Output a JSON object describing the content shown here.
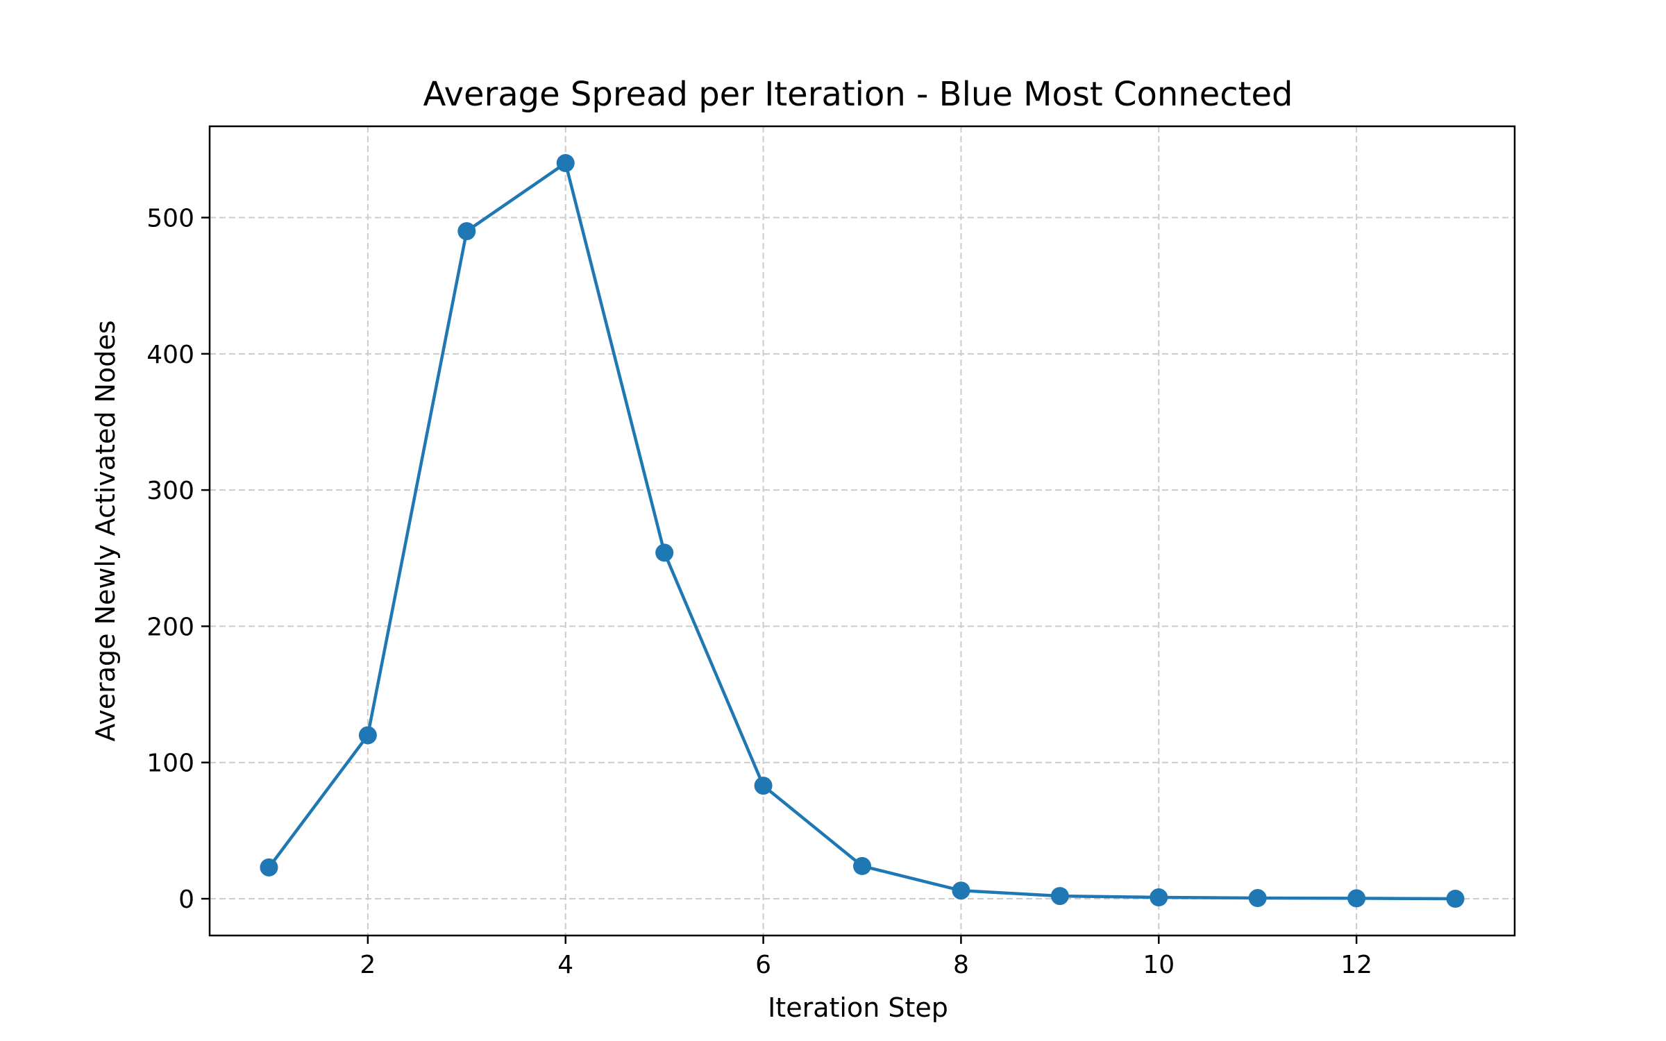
{
  "chart_data": {
    "type": "line",
    "title": "Average Spread per Iteration - Blue Most Connected",
    "xlabel": "Iteration Step",
    "ylabel": "Average Newly Activated Nodes",
    "x": [
      1,
      2,
      3,
      4,
      5,
      6,
      7,
      8,
      9,
      10,
      11,
      12,
      13
    ],
    "series": [
      {
        "values": [
          23,
          120,
          490,
          540,
          254,
          83,
          24,
          6,
          2,
          1,
          0.5,
          0.3,
          0
        ],
        "color": "#1f77b4",
        "marker": "circle"
      }
    ],
    "xticks": [
      "2",
      "4",
      "6",
      "8",
      "10",
      "12"
    ],
    "xtick_values": [
      2,
      4,
      6,
      8,
      10,
      12
    ],
    "yticks": [
      "0",
      "100",
      "200",
      "300",
      "400",
      "500"
    ],
    "ytick_values": [
      0,
      100,
      200,
      300,
      400,
      500
    ],
    "xlim": [
      0.4,
      13.6
    ],
    "ylim": [
      -27,
      567
    ],
    "grid": true,
    "grid_style": "dashed",
    "grid_color": "#cccccc",
    "legend": false
  }
}
